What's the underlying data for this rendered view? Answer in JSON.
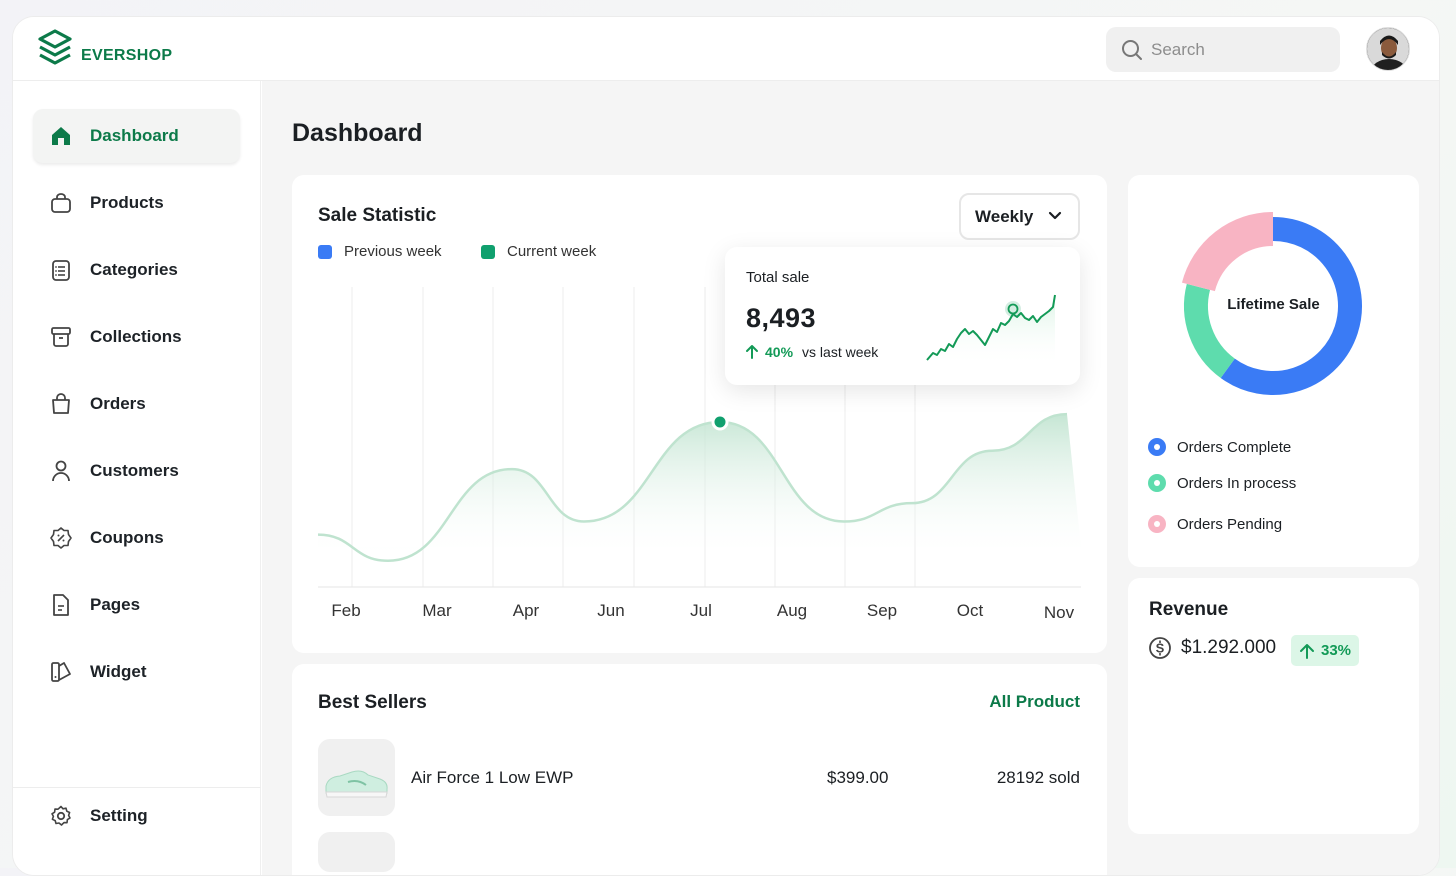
{
  "app": {
    "brand": "EVERSHOP"
  },
  "search": {
    "placeholder": "Search"
  },
  "sidebar": {
    "items": [
      {
        "label": "Dashboard",
        "icon": "home-icon",
        "active": true
      },
      {
        "label": "Products",
        "icon": "bag-icon"
      },
      {
        "label": "Categories",
        "icon": "clipboard-list-icon"
      },
      {
        "label": "Collections",
        "icon": "archive-icon"
      },
      {
        "label": "Orders",
        "icon": "shopping-bag-icon"
      },
      {
        "label": "Customers",
        "icon": "user-icon"
      },
      {
        "label": "Coupons",
        "icon": "discount-badge-icon"
      },
      {
        "label": "Pages",
        "icon": "document-icon"
      },
      {
        "label": "Widget",
        "icon": "widget-icon"
      }
    ],
    "setting": {
      "label": "Setting",
      "icon": "gear-icon"
    }
  },
  "main": {
    "title": "Dashboard"
  },
  "sale_statistic": {
    "title": "Sale Statistic",
    "period": "Weekly",
    "legend": [
      {
        "label": "Previous week",
        "color": "#3a7bf5"
      },
      {
        "label": "Current week",
        "color": "#10a06e"
      }
    ],
    "tooltip": {
      "label": "Total sale",
      "value": "8,493",
      "delta": "40%",
      "delta_suffix": "vs last week"
    }
  },
  "chart_data": {
    "type": "area",
    "categories": [
      "Feb",
      "Mar",
      "Apr",
      "Jun",
      "Jul",
      "Aug",
      "Sep",
      "Oct",
      "Nov"
    ],
    "series": [
      {
        "name": "Current week",
        "values": [
          20,
          10,
          45,
          25,
          63,
          25,
          32,
          52,
          66
        ]
      }
    ],
    "highlight": "Jul",
    "colors": {
      "line": "#bfe3cf",
      "fill": "#d7efe2",
      "marker": "#10a06e"
    }
  },
  "best_sellers": {
    "title": "Best Sellers",
    "link": "All Product",
    "rows": [
      {
        "name": "Air Force 1 Low EWP",
        "price": "$399.00",
        "sold": "28192 sold"
      }
    ]
  },
  "lifetime_sale": {
    "title": "Lifetime Sale",
    "segments": [
      {
        "label": "Orders Complete",
        "value": 0.6,
        "color": "#3a7bf5"
      },
      {
        "label": "Orders In process",
        "value": 0.19,
        "color": "#5edcad"
      },
      {
        "label": "Orders Pending",
        "value": 0.21,
        "color": "#f8b4c3"
      }
    ]
  },
  "revenue": {
    "title": "Revenue",
    "amount": "$1.292.000",
    "change": "33%"
  }
}
